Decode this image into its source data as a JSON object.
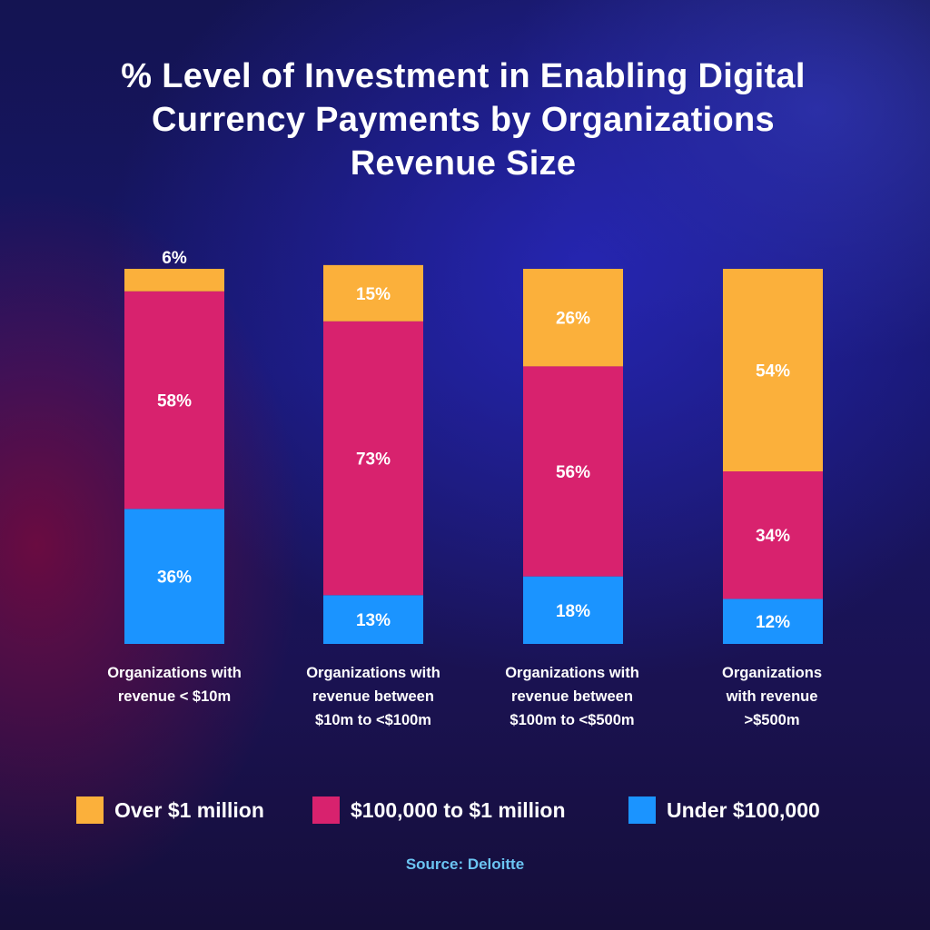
{
  "title": {
    "line1": "% Level of Investment in Enabling Digital",
    "line2": "Currency Payments by Organizations",
    "line3": "Revenue Size"
  },
  "chart_data": {
    "type": "bar",
    "stacked": true,
    "orientation": "vertical",
    "ylim": [
      0,
      100
    ],
    "grid": false,
    "legend_position": "bottom",
    "categories": [
      [
        "Organizations with",
        "revenue < $10m"
      ],
      [
        "Organizations with",
        "revenue between",
        "$10m to <$100m"
      ],
      [
        "Organizations with",
        "revenue between",
        "$100m to <$500m"
      ],
      [
        "Organizations",
        "with revenue",
        ">$500m"
      ]
    ],
    "series": [
      {
        "name": "Under $100,000",
        "color": "#1b94ff",
        "values": [
          36,
          13,
          18,
          12
        ],
        "labels": [
          "36%",
          "13%",
          "18%",
          "12%"
        ]
      },
      {
        "name": "$100,000 to $1 million",
        "color": "#d8226e",
        "values": [
          58,
          73,
          56,
          34
        ],
        "labels": [
          "58%",
          "73%",
          "56%",
          "34%"
        ]
      },
      {
        "name": "Over $1 million",
        "color": "#fbb03b",
        "values": [
          6,
          15,
          26,
          54
        ],
        "labels": [
          "6%",
          "15%",
          "26%",
          "54%"
        ]
      }
    ]
  },
  "legend": [
    {
      "label": "Over $1 million",
      "color": "#fbb03b"
    },
    {
      "label": "$100,000 to $1 million",
      "color": "#d8226e"
    },
    {
      "label": "Under $100,000",
      "color": "#1b94ff"
    }
  ],
  "source": "Source: Deloitte"
}
